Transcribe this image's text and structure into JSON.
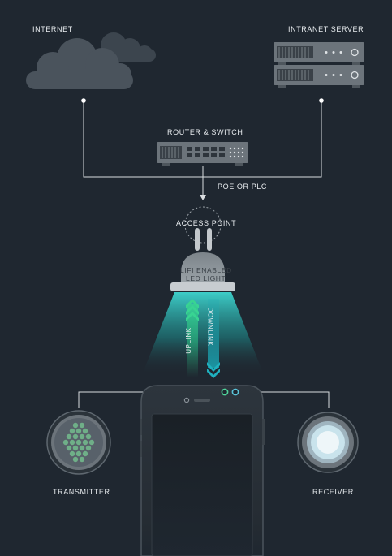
{
  "labels": {
    "internet": "INTERNET",
    "intranet_server": "INTRANET SERVER",
    "router_switch": "ROUTER & SWITCH",
    "poe_plc": "POE OR PLC",
    "access_point": "ACCESS POINT",
    "lifi_line1": "LIFI ENABLED",
    "lifi_line2": "LED LIGHT",
    "uplink": "UPLINK",
    "downlink": "DOWNLINK",
    "transmitter": "TRANSMITTER",
    "receiver": "RECEIVER"
  },
  "colors": {
    "background": "#1f2730",
    "line": "#d9dde0",
    "cloud": "#4a535c",
    "device": "#6c747b",
    "uplink": "#2bbf83",
    "downlink": "#1aa7b5",
    "light_beam": "#33c9c2",
    "transmitter_led": "#5fa37c",
    "receiver_led": "#c9e3ec"
  }
}
